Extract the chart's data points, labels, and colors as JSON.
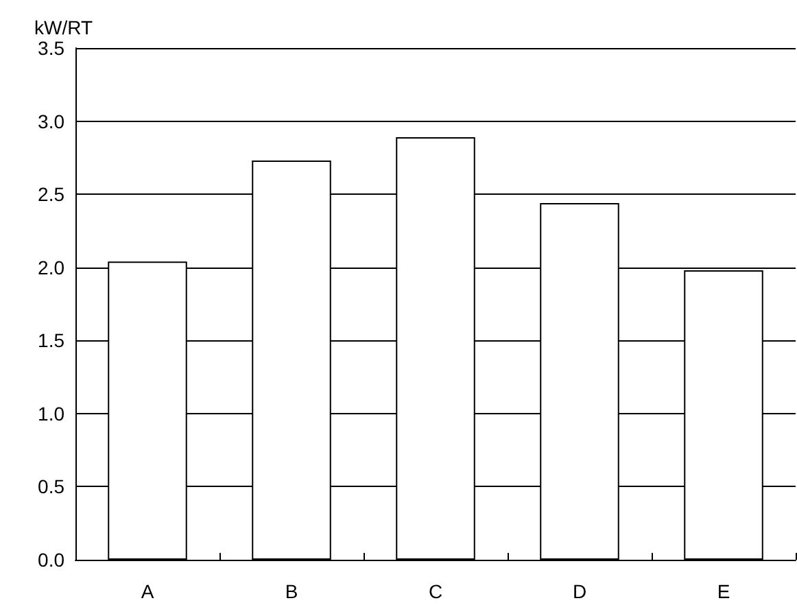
{
  "chart_data": {
    "type": "bar",
    "ylabel": "kW/RT",
    "categories": [
      "A",
      "B",
      "C",
      "D",
      "E"
    ],
    "values": [
      2.04,
      2.73,
      2.89,
      2.44,
      1.98
    ],
    "color": "#ffffff",
    "ylim": [
      0,
      3.5
    ],
    "yticks": [
      {
        "value": 0,
        "label": "0.0"
      },
      {
        "value": 0.5,
        "label": "0.5"
      },
      {
        "value": 1,
        "label": "1.0"
      },
      {
        "value": 1.5,
        "label": "1.5"
      },
      {
        "value": 2,
        "label": "2.0"
      },
      {
        "value": 2.5,
        "label": "2.5"
      },
      {
        "value": 3,
        "label": "3.0"
      },
      {
        "value": 3.5,
        "label": "3.5"
      }
    ],
    "grid": "y"
  }
}
